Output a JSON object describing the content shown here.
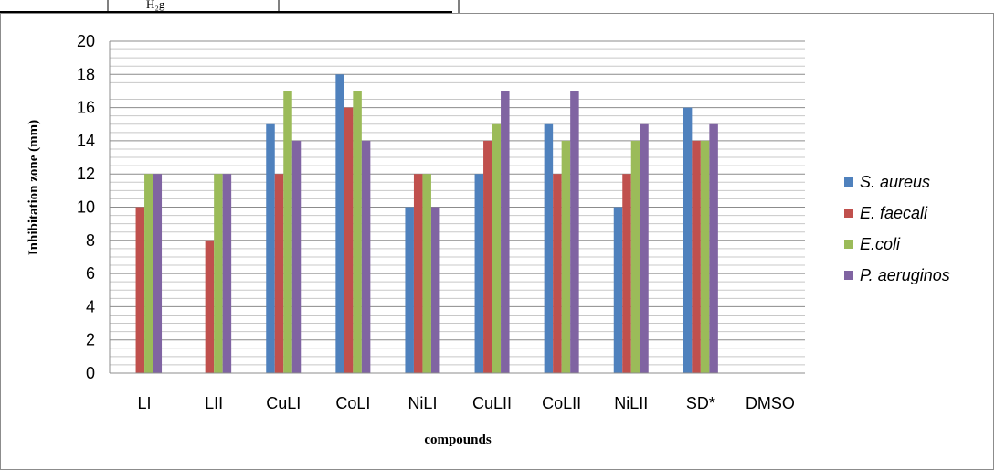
{
  "top_fragment": {
    "text": "H₂g"
  },
  "chart_data": {
    "type": "bar",
    "title": "",
    "xlabel": "compounds",
    "ylabel": "Inhibitation zone (mm)",
    "ylim": [
      0,
      20
    ],
    "ytick_step": 2,
    "grid": true,
    "legend_position": "right",
    "categories": [
      "LI",
      "LII",
      "CuLI",
      "CoLI",
      "NiLI",
      "CuLII",
      "CoLII",
      "NiLII",
      "SD*",
      "DMSO"
    ],
    "series": [
      {
        "name": "S. aureus",
        "color": "#4f81bd",
        "values": [
          0,
          0,
          15,
          18,
          10,
          12,
          15,
          10,
          16,
          0
        ]
      },
      {
        "name": "E. faecali",
        "color": "#c0504d",
        "values": [
          10,
          8,
          12,
          16,
          12,
          14,
          12,
          12,
          14,
          0
        ]
      },
      {
        "name": "E.coli",
        "color": "#9bbb59",
        "values": [
          12,
          12,
          17,
          17,
          12,
          15,
          14,
          14,
          14,
          0
        ]
      },
      {
        "name": "P. aeruginos",
        "color": "#8064a2",
        "values": [
          12,
          12,
          14,
          14,
          10,
          17,
          17,
          15,
          15,
          0
        ]
      }
    ]
  }
}
